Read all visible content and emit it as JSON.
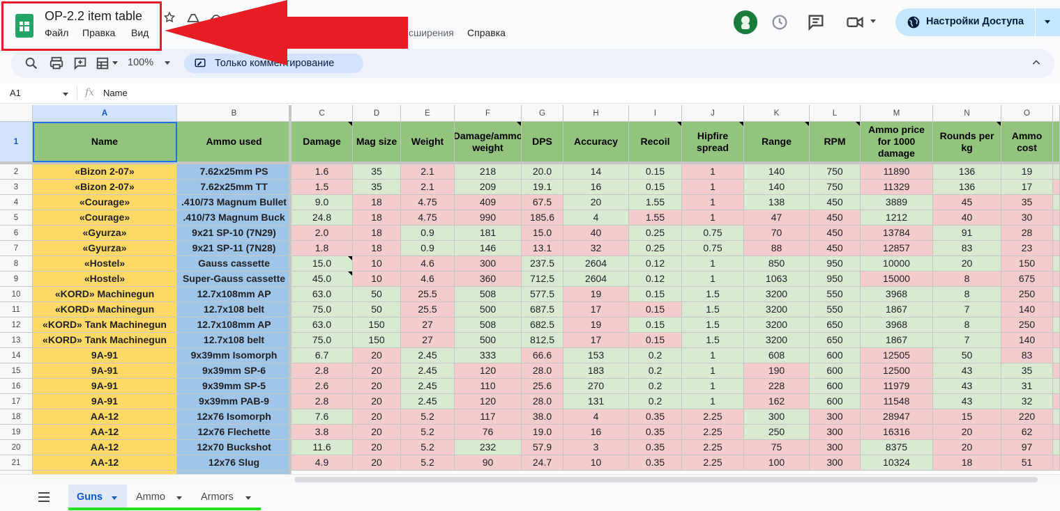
{
  "header": {
    "title": "OP-2.2 item table",
    "menu": [
      {
        "label": "Файл"
      },
      {
        "label": "Правка"
      },
      {
        "label": "Вид"
      },
      {
        "label": "сширения"
      },
      {
        "label": "Справка"
      }
    ],
    "share_label": "Настройки Доступа"
  },
  "toolbar": {
    "zoom": "100%",
    "mode": "Только комментирование"
  },
  "formula_bar": {
    "cell_ref": "A1",
    "fx": "fx",
    "value": "Name"
  },
  "columns": [
    "A",
    "B",
    "C",
    "D",
    "E",
    "F",
    "G",
    "H",
    "I",
    "J",
    "K",
    "L",
    "M",
    "N",
    "O"
  ],
  "headers": [
    "Name",
    "Ammo used",
    "Damage",
    "Mag size",
    "Weight",
    "Damage/ammo weight",
    "DPS",
    "Accuracy",
    "Recoil",
    "Hipfire spread",
    "Range",
    "RPM",
    "Ammo price for 1000 damage",
    "Rounds per kg",
    "Ammo cost"
  ],
  "rows": [
    {
      "n": "2",
      "cells": [
        "«Bizon 2-07»",
        "7.62x25mm PS",
        "1.6",
        "35",
        "2.1",
        "218",
        "20.0",
        "14",
        "0.15",
        "1",
        "140",
        "750",
        "11890",
        "136",
        "19"
      ]
    },
    {
      "n": "3",
      "cells": [
        "«Bizon 2-07»",
        "7.62x25mm TT",
        "1.5",
        "35",
        "2.1",
        "209",
        "19.1",
        "16",
        "0.15",
        "1",
        "140",
        "750",
        "11329",
        "136",
        "17"
      ]
    },
    {
      "n": "4",
      "cells": [
        "«Courage»",
        ".410/73 Magnum Bullet",
        "9.0",
        "18",
        "4.75",
        "409",
        "67.5",
        "20",
        "1.55",
        "1",
        "138",
        "450",
        "3889",
        "45",
        "35"
      ]
    },
    {
      "n": "5",
      "cells": [
        "«Courage»",
        ".410/73 Magnum Buck",
        "24.8",
        "18",
        "4.75",
        "990",
        "185.6",
        "4",
        "1.55",
        "1",
        "47",
        "450",
        "1212",
        "40",
        "30"
      ]
    },
    {
      "n": "6",
      "cells": [
        "«Gyurza»",
        "9x21 SP-10 (7N29)",
        "2.0",
        "18",
        "0.9",
        "181",
        "15.0",
        "40",
        "0.25",
        "0.75",
        "70",
        "450",
        "13784",
        "91",
        "28"
      ]
    },
    {
      "n": "7",
      "cells": [
        "«Gyurza»",
        "9x21 SP-11 (7N28)",
        "1.8",
        "18",
        "0.9",
        "146",
        "13.1",
        "32",
        "0.25",
        "0.75",
        "88",
        "450",
        "12857",
        "83",
        "23"
      ]
    },
    {
      "n": "8",
      "cells": [
        "«Hostel»",
        "Gauss cassette",
        "15.0",
        "10",
        "4.6",
        "300",
        "237.5",
        "2604",
        "0.12",
        "1",
        "850",
        "950",
        "10000",
        "20",
        "150"
      ]
    },
    {
      "n": "9",
      "cells": [
        "«Hostel»",
        "Super-Gauss cassette",
        "45.0",
        "10",
        "4.6",
        "360",
        "712.5",
        "2604",
        "0.12",
        "1",
        "1063",
        "950",
        "15000",
        "8",
        "675"
      ]
    },
    {
      "n": "10",
      "cells": [
        "«KORD» Machinegun",
        "12.7x108mm AP",
        "63.0",
        "50",
        "25.5",
        "508",
        "577.5",
        "19",
        "0.15",
        "1.5",
        "3200",
        "550",
        "3968",
        "8",
        "250"
      ]
    },
    {
      "n": "11",
      "cells": [
        "«KORD» Machinegun",
        "12.7x108 belt",
        "75.0",
        "50",
        "25.5",
        "500",
        "687.5",
        "17",
        "0.15",
        "1.5",
        "3200",
        "550",
        "1867",
        "7",
        "140"
      ]
    },
    {
      "n": "12",
      "cells": [
        "«KORD» Tank Machinegun",
        "12.7x108mm AP",
        "63.0",
        "150",
        "27",
        "508",
        "682.5",
        "19",
        "0.15",
        "1.5",
        "3200",
        "650",
        "3968",
        "8",
        "250"
      ]
    },
    {
      "n": "13",
      "cells": [
        "«KORD» Tank Machinegun",
        "12.7x108 belt",
        "75.0",
        "150",
        "27",
        "500",
        "812.5",
        "17",
        "0.15",
        "1.5",
        "3200",
        "650",
        "1867",
        "7",
        "140"
      ]
    },
    {
      "n": "14",
      "cells": [
        "9A-91",
        "9x39mm Isomorph",
        "6.7",
        "20",
        "2.45",
        "333",
        "66.6",
        "153",
        "0.2",
        "1",
        "608",
        "600",
        "12505",
        "50",
        "83"
      ]
    },
    {
      "n": "15",
      "cells": [
        "9A-91",
        "9x39mm SP-6",
        "2.8",
        "20",
        "2.45",
        "120",
        "28.0",
        "183",
        "0.2",
        "1",
        "190",
        "600",
        "12500",
        "43",
        "35"
      ]
    },
    {
      "n": "16",
      "cells": [
        "9A-91",
        "9x39mm SP-5",
        "2.6",
        "20",
        "2.45",
        "110",
        "25.6",
        "270",
        "0.2",
        "1",
        "228",
        "600",
        "11979",
        "43",
        "31"
      ]
    },
    {
      "n": "17",
      "cells": [
        "9A-91",
        "9x39mm PAB-9",
        "2.8",
        "20",
        "2.45",
        "120",
        "28.0",
        "131",
        "0.2",
        "1",
        "162",
        "600",
        "11548",
        "43",
        "32"
      ]
    },
    {
      "n": "18",
      "cells": [
        "AA-12",
        "12x76 Isomorph",
        "7.6",
        "20",
        "5.2",
        "117",
        "38.0",
        "4",
        "0.35",
        "2.25",
        "300",
        "300",
        "28947",
        "15",
        "220"
      ]
    },
    {
      "n": "19",
      "cells": [
        "AA-12",
        "12x76 Flechette",
        "3.8",
        "20",
        "5.2",
        "76",
        "19.0",
        "16",
        "0.35",
        "2.25",
        "250",
        "300",
        "16316",
        "20",
        "62"
      ]
    },
    {
      "n": "20",
      "cells": [
        "AA-12",
        "12x70 Buckshot",
        "11.6",
        "20",
        "5.2",
        "232",
        "57.9",
        "3",
        "0.35",
        "2.25",
        "75",
        "300",
        "8375",
        "20",
        "97"
      ]
    },
    {
      "n": "21",
      "cells": [
        "AA-12",
        "12x76 Slug",
        "4.9",
        "20",
        "5.2",
        "90",
        "24.7",
        "10",
        "0.35",
        "2.25",
        "100",
        "300",
        "10324",
        "18",
        "51"
      ]
    }
  ],
  "colors": {
    "accent": "#0b57d0",
    "header_green": "#93c47d",
    "name_yellow": "#ffd966",
    "ammo_blue": "#9fc5e8",
    "good_green": "#d9ead3",
    "bad_red": "#f4cccc",
    "annotation_red": "#e81c24",
    "tab_underline": "#23e021"
  },
  "sheets": [
    {
      "label": "Guns",
      "active": true
    },
    {
      "label": "Ammo",
      "active": false
    },
    {
      "label": "Armors",
      "active": false
    }
  ]
}
